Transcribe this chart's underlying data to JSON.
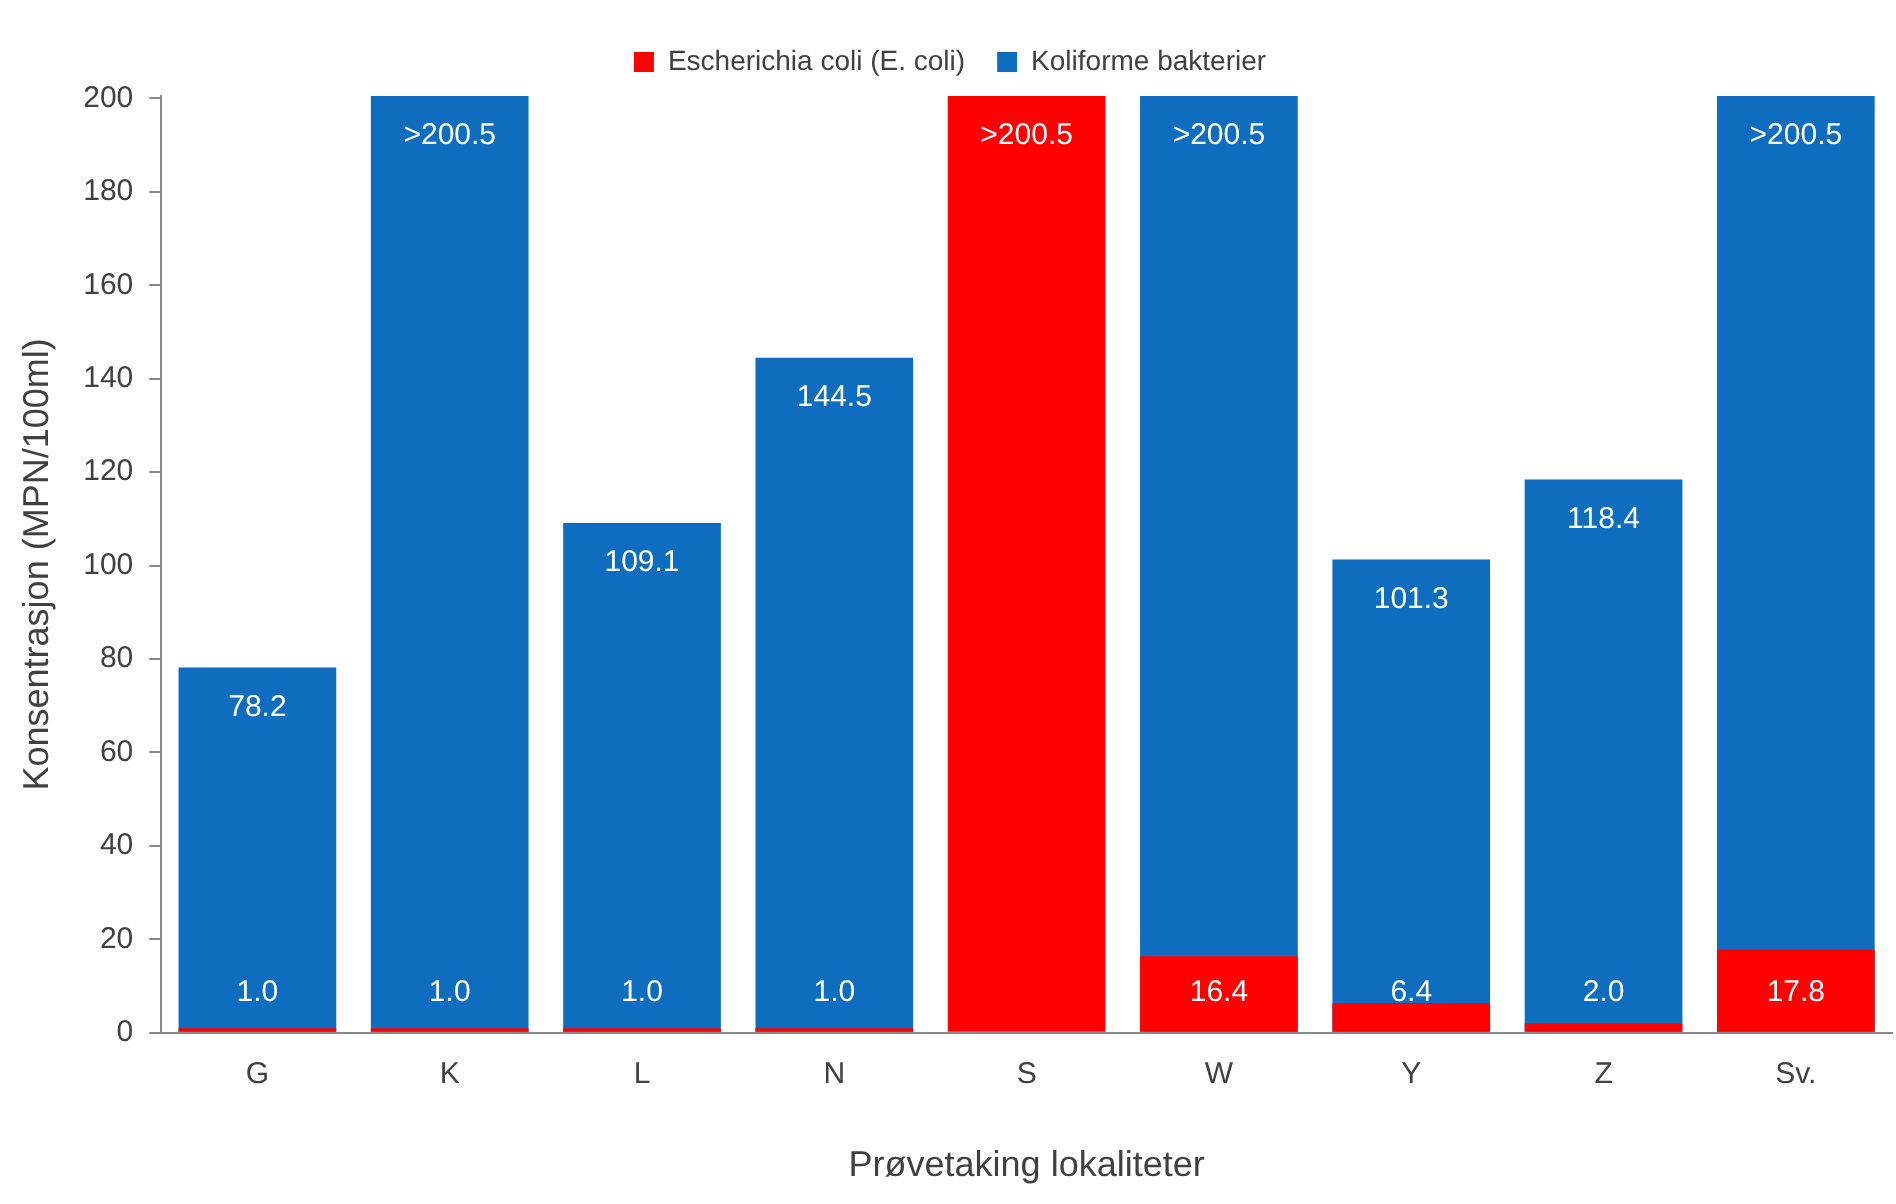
{
  "chart_data": {
    "type": "bar",
    "xlabel": "Prøvetaking lokaliteter",
    "ylabel": "Konsentrasjon (MPN/100ml)",
    "categories": [
      "G",
      "K",
      "L",
      "N",
      "S",
      "W",
      "Y",
      "Z",
      "Sv."
    ],
    "series": [
      {
        "name": "Koliforme bakterier",
        "color": "#0f6dbf",
        "values": [
          78.2,
          200.5,
          109.1,
          144.5,
          null,
          200.5,
          101.3,
          118.4,
          200.5
        ],
        "value_labels": [
          "78.2",
          ">200.5",
          "109.1",
          "144.5",
          null,
          ">200.5",
          "101.3",
          "118.4",
          ">200.5"
        ]
      },
      {
        "name": "Escherichia coli (E. coli)",
        "color": "#ff0000",
        "values": [
          1.0,
          1.0,
          1.0,
          1.0,
          200.5,
          16.4,
          6.4,
          2.0,
          17.8
        ],
        "value_labels": [
          "1.0",
          "1.0",
          "1.0",
          "1.0",
          ">200.5",
          "16.4",
          "6.4",
          "2.0",
          "17.8"
        ]
      }
    ],
    "ylim": [
      0,
      200.5
    ],
    "yticks": [
      0,
      20,
      40,
      60,
      80,
      100,
      120,
      140,
      160,
      180,
      200
    ],
    "grid": false,
    "legend": "top"
  }
}
